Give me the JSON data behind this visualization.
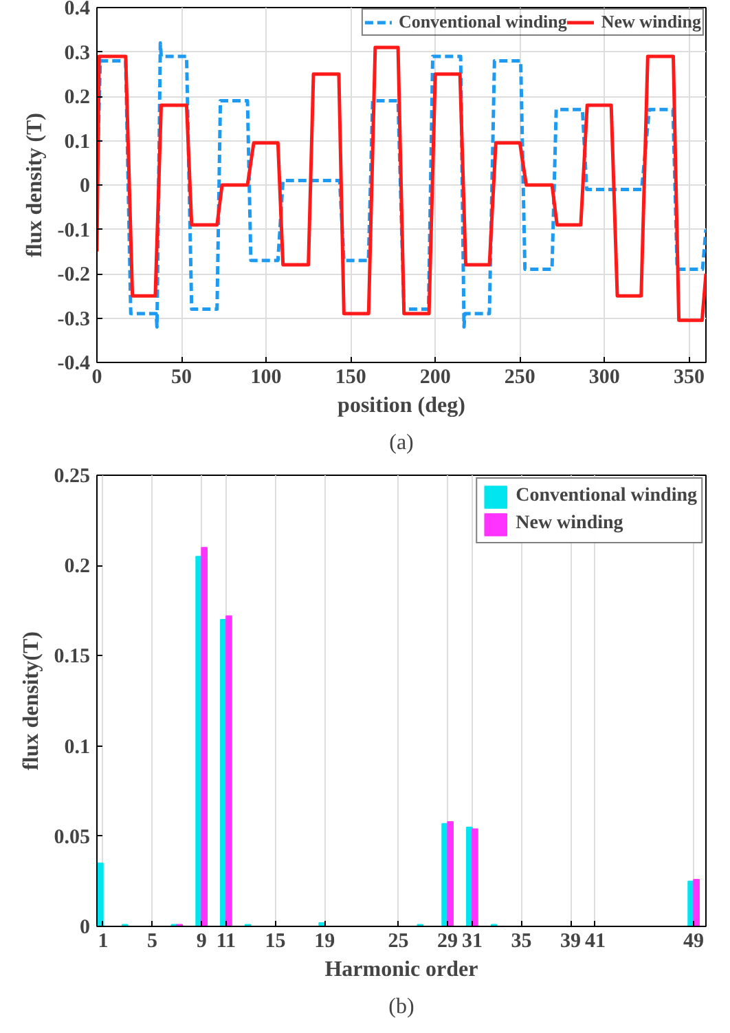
{
  "chart_data": [
    {
      "type": "line",
      "xlabel": "position (deg)",
      "ylabel": "flux density (T)",
      "xlim": [
        0,
        360
      ],
      "ylim": [
        -0.4,
        0.4
      ],
      "xticks": [
        0,
        50,
        100,
        150,
        200,
        250,
        300,
        350
      ],
      "yticks": [
        -0.4,
        -0.3,
        -0.2,
        -0.1,
        0,
        0.1,
        0.2,
        0.3,
        0.4
      ],
      "grid": true,
      "legend": "top right",
      "annotations": [
        "(a)"
      ],
      "series": [
        {
          "name": "Conventional winding",
          "color": "#1e9bf0",
          "line_style": "dashed",
          "x": [
            0,
            2,
            17,
            20,
            35,
            35.5,
            37.5,
            38,
            53,
            56,
            71,
            73,
            89,
            91,
            107,
            110,
            143.5,
            146,
            160.5,
            163,
            178,
            181.5,
            196,
            198.5,
            215,
            217,
            217.5,
            232,
            235,
            250.5,
            253,
            269,
            271.5,
            287,
            289.5,
            322,
            326.5,
            340.5,
            343,
            358,
            360
          ],
          "values": [
            0,
            0.28,
            0.28,
            -0.29,
            -0.29,
            -0.32,
            0.32,
            0.29,
            0.29,
            -0.28,
            -0.28,
            0.19,
            0.19,
            -0.17,
            -0.17,
            0.01,
            0.01,
            -0.17,
            -0.17,
            0.19,
            0.19,
            -0.28,
            -0.28,
            0.29,
            0.29,
            -0.32,
            -0.29,
            -0.29,
            0.28,
            0.28,
            -0.19,
            -0.19,
            0.17,
            0.17,
            -0.01,
            -0.01,
            0.17,
            0.17,
            -0.19,
            -0.19,
            -0.1
          ]
        },
        {
          "name": "New winding",
          "color": "#ff1a1a",
          "line_style": "solid",
          "x": [
            0,
            1.3,
            17,
            21,
            34.5,
            38,
            53,
            56,
            71,
            74,
            89,
            92.7,
            107,
            110,
            125,
            128,
            143,
            146,
            160.6,
            164.5,
            178,
            181.5,
            196.3,
            200,
            214.6,
            218,
            232,
            235.8,
            250,
            253.8,
            269,
            272,
            286,
            289.8,
            304,
            307.6,
            321.7,
            325.6,
            340.7,
            344,
            357.7,
            360
          ],
          "values": [
            -0.15,
            0.29,
            0.29,
            -0.25,
            -0.25,
            0.18,
            0.18,
            -0.09,
            -0.09,
            0,
            0,
            0.095,
            0.095,
            -0.18,
            -0.18,
            0.25,
            0.25,
            -0.29,
            -0.29,
            0.31,
            0.31,
            -0.29,
            -0.29,
            0.25,
            0.25,
            -0.18,
            -0.18,
            0.095,
            0.095,
            0,
            0,
            -0.09,
            -0.09,
            0.18,
            0.18,
            -0.25,
            -0.25,
            0.29,
            0.29,
            -0.305,
            -0.305,
            -0.2
          ]
        }
      ]
    },
    {
      "type": "bar",
      "xlabel": "Harmonic order",
      "ylabel": "flux density(T)",
      "xlim": [
        0.5,
        50
      ],
      "ylim": [
        0,
        0.25
      ],
      "xticks": [
        1,
        5,
        9,
        11,
        15,
        19,
        25,
        29,
        31,
        35,
        39,
        41,
        49
      ],
      "yticks": [
        0,
        0.05,
        0.1,
        0.15,
        0.2,
        0.25
      ],
      "grid": "x",
      "legend": "top right",
      "annotations": [
        "(b)"
      ],
      "x": [
        1,
        3,
        5,
        7,
        9,
        11,
        13,
        15,
        17,
        19,
        21,
        23,
        25,
        27,
        29,
        31,
        33,
        35,
        37,
        39,
        41,
        43,
        45,
        47,
        49
      ],
      "series": [
        {
          "name": "Conventional winding",
          "color": "#00e5ee",
          "values": [
            0.035,
            0.001,
            0,
            0.001,
            0.205,
            0.17,
            0.001,
            0,
            0,
            0.002,
            0,
            0,
            0,
            0.001,
            0.057,
            0.055,
            0.001,
            0,
            0,
            0,
            0,
            0,
            0,
            0,
            0.025
          ]
        },
        {
          "name": "New winding",
          "color": "#ff33ff",
          "values": [
            0,
            0,
            0,
            0.001,
            0.21,
            0.172,
            0,
            0,
            0,
            0,
            0,
            0,
            0,
            0,
            0.058,
            0.054,
            0,
            0,
            0,
            0,
            0,
            0,
            0,
            0,
            0.026
          ]
        }
      ]
    }
  ]
}
